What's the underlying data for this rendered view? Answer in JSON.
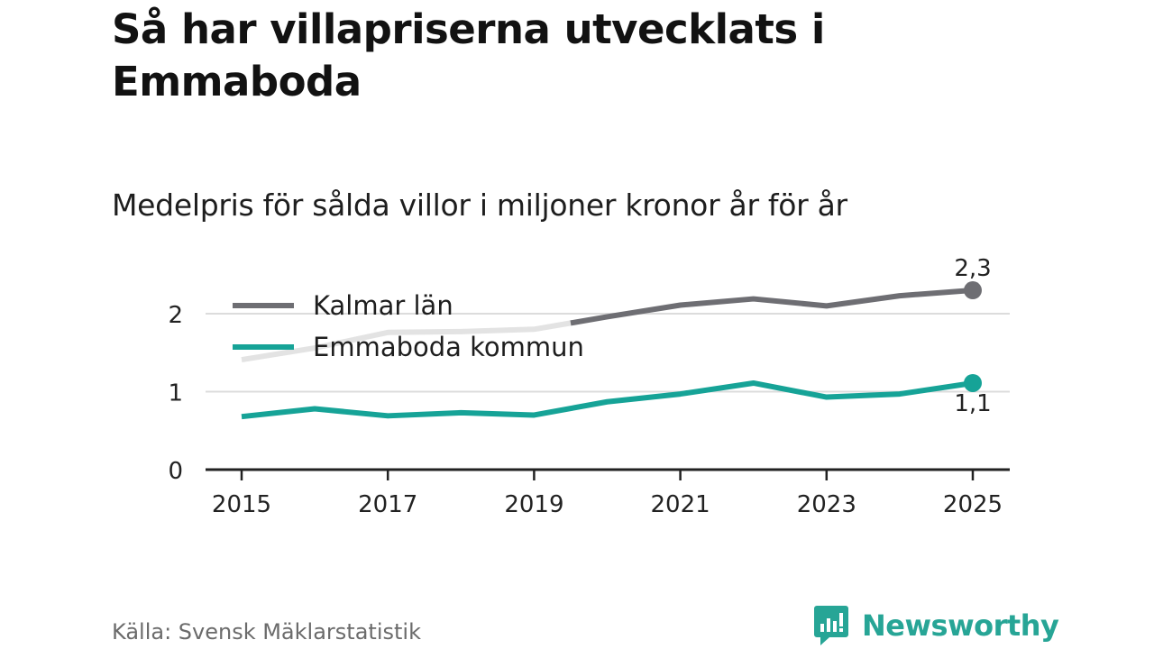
{
  "title": "Så har villapriserna utvecklats i Emmaboda",
  "subtitle": "Medelpris för sålda villor i miljoner kronor år för år",
  "source": "Källa: Svensk Mäklarstatistik",
  "brand": {
    "name": "Newsworthy",
    "icon": "newsworthy-logo-icon",
    "color": "#27a596"
  },
  "chart_data": {
    "type": "line",
    "x": [
      2015,
      2016,
      2017,
      2018,
      2019,
      2020,
      2021,
      2022,
      2023,
      2024,
      2025
    ],
    "x_ticks": [
      "2015",
      "2017",
      "2019",
      "2021",
      "2023",
      "2025"
    ],
    "y_ticks": [
      "0",
      "1",
      "2"
    ],
    "ylim": [
      0,
      2.5
    ],
    "grid": true,
    "legend_position": "top-left",
    "series": [
      {
        "name": "Kalmar län",
        "color": "#6e6e73",
        "faded_color": "#e3e3e3",
        "faded_until": 2019,
        "values": [
          1.41,
          1.56,
          1.76,
          1.77,
          1.8,
          1.96,
          2.11,
          2.19,
          2.1,
          2.23,
          2.3
        ],
        "end_label": "2,3"
      },
      {
        "name": "Emmaboda kommun",
        "color": "#16a397",
        "values": [
          0.68,
          0.78,
          0.69,
          0.73,
          0.7,
          0.87,
          0.97,
          1.11,
          0.93,
          0.97,
          1.11
        ],
        "end_label": "1,1"
      }
    ]
  }
}
